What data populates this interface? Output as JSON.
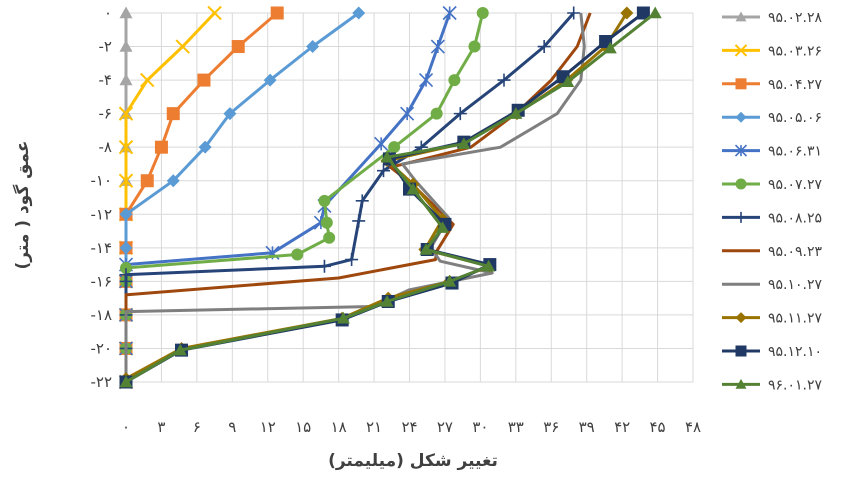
{
  "chart_data": {
    "type": "line",
    "title": "",
    "xlabel": "تغییر شکل (میلیمتر)",
    "ylabel": "عمق گود ( متر)",
    "xlim": [
      0,
      48
    ],
    "ylim": [
      -22,
      0
    ],
    "x_ticks": [
      "۰",
      "۳",
      "۶",
      "۹",
      "۱۲",
      "۱۵",
      "۱۸",
      "۲۱",
      "۲۴",
      "۲۷",
      "۳۰",
      "۳۳",
      "۳۶",
      "۳۹",
      "۴۲",
      "۴۵",
      "۴۸"
    ],
    "y_ticks": [
      "۰",
      "-۲",
      "-۴",
      "-۶",
      "-۸",
      "-۱۰",
      "-۱۲",
      "-۱۴",
      "-۱۶",
      "-۱۸",
      "-۲۰",
      "-۲۲"
    ],
    "grid": true,
    "legend_position": "right",
    "depths": [
      0,
      -2,
      -4,
      -6,
      -8,
      -10,
      -12,
      -14,
      -16,
      -18,
      -20,
      -22
    ],
    "series": [
      {
        "name": "۹۵.۰۲.۲۸",
        "color": "#a5a5a5",
        "marker": "triangle",
        "points": [
          [
            0,
            0
          ],
          [
            0,
            -2
          ],
          [
            0,
            -4
          ],
          [
            0,
            -6
          ],
          [
            0,
            -8
          ],
          [
            0,
            -10
          ],
          [
            0,
            -12
          ],
          [
            0,
            -14
          ],
          [
            0,
            -16
          ],
          [
            0,
            -18
          ],
          [
            0,
            -20
          ],
          [
            0,
            -22
          ]
        ]
      },
      {
        "name": "۹۵.۰۳.۲۶",
        "color": "#ffc000",
        "marker": "x",
        "points": [
          [
            7.5,
            0
          ],
          [
            4.8,
            -2
          ],
          [
            1.8,
            -4
          ],
          [
            0,
            -6
          ],
          [
            0,
            -8
          ],
          [
            0,
            -10
          ],
          [
            0,
            -12
          ],
          [
            0,
            -14
          ],
          [
            0,
            -16
          ],
          [
            0,
            -18
          ],
          [
            0,
            -20
          ],
          [
            0,
            -22
          ]
        ]
      },
      {
        "name": "۹۵.۰۴.۲۷",
        "color": "#ed7d31",
        "marker": "square",
        "points": [
          [
            12.8,
            0
          ],
          [
            9.5,
            -2
          ],
          [
            6.6,
            -4
          ],
          [
            4,
            -6
          ],
          [
            3,
            -8
          ],
          [
            1.8,
            -10
          ],
          [
            0,
            -12
          ],
          [
            0,
            -14
          ],
          [
            0,
            -16
          ],
          [
            0,
            -18
          ],
          [
            0,
            -20
          ],
          [
            0,
            -22
          ]
        ]
      },
      {
        "name": "۹۵.۰۵.۰۶",
        "color": "#5b9bd5",
        "marker": "diamond",
        "points": [
          [
            19.7,
            0
          ],
          [
            15.8,
            -2
          ],
          [
            12.2,
            -4
          ],
          [
            8.8,
            -6
          ],
          [
            6.7,
            -8
          ],
          [
            4,
            -10
          ],
          [
            0,
            -12
          ],
          [
            0,
            -14
          ],
          [
            0,
            -16
          ],
          [
            0,
            -18
          ],
          [
            0,
            -20
          ],
          [
            0,
            -22
          ]
        ]
      },
      {
        "name": "۹۵.۰۶.۳۱",
        "color": "#4472c4",
        "marker": "star",
        "points": [
          [
            27.4,
            0
          ],
          [
            26.4,
            -2
          ],
          [
            25.4,
            -4
          ],
          [
            23.8,
            -6
          ],
          [
            21.6,
            -7.8
          ],
          [
            16.8,
            -11.5
          ],
          [
            16.5,
            -12.5
          ],
          [
            12.4,
            -14.3
          ],
          [
            0,
            -15
          ],
          [
            0,
            -16
          ],
          [
            0,
            -18
          ],
          [
            0,
            -20
          ],
          [
            0,
            -22
          ]
        ]
      },
      {
        "name": "۹۵.۰۷.۲۷",
        "color": "#70ad47",
        "marker": "circle",
        "points": [
          [
            30.2,
            0
          ],
          [
            29.5,
            -2
          ],
          [
            27.8,
            -4
          ],
          [
            26.3,
            -6
          ],
          [
            22.7,
            -8
          ],
          [
            16.8,
            -11.2
          ],
          [
            17,
            -12.5
          ],
          [
            17.2,
            -13.4
          ],
          [
            14.5,
            -14.4
          ],
          [
            0,
            -15.2
          ],
          [
            0,
            -16
          ],
          [
            0,
            -18
          ],
          [
            0,
            -20
          ],
          [
            0,
            -22
          ]
        ]
      },
      {
        "name": "۹۵.۰۸.۲۵",
        "color": "#264478",
        "marker": "plus",
        "points": [
          [
            37.9,
            0
          ],
          [
            35.4,
            -2
          ],
          [
            32,
            -4
          ],
          [
            28.3,
            -6
          ],
          [
            25,
            -8
          ],
          [
            21.8,
            -9.4
          ],
          [
            20,
            -11.2
          ],
          [
            19.7,
            -12.4
          ],
          [
            19.1,
            -14.7
          ],
          [
            16.8,
            -15.1
          ],
          [
            0,
            -15.6
          ],
          [
            0,
            -16
          ],
          [
            0,
            -18
          ],
          [
            0,
            -20
          ],
          [
            0,
            -22
          ]
        ]
      },
      {
        "name": "۹۵.۰۹.۲۳",
        "color": "#9e480e",
        "marker": "none",
        "points": [
          [
            39.3,
            0
          ],
          [
            38.2,
            -2
          ],
          [
            36,
            -4
          ],
          [
            33,
            -6
          ],
          [
            29.2,
            -8
          ],
          [
            22.4,
            -9.2
          ],
          [
            24.2,
            -10.2
          ],
          [
            27.7,
            -12.6
          ],
          [
            26.3,
            -14.2
          ],
          [
            26.2,
            -14.7
          ],
          [
            18,
            -15.8
          ],
          [
            0,
            -16.8
          ],
          [
            0,
            -18
          ],
          [
            0,
            -20
          ],
          [
            0,
            -22
          ]
        ]
      },
      {
        "name": "۹۵.۱۰.۲۷",
        "color": "#7f7f7f",
        "marker": "none",
        "points": [
          [
            38.5,
            0
          ],
          [
            38.8,
            -2
          ],
          [
            38.5,
            -4
          ],
          [
            36.5,
            -6
          ],
          [
            31.7,
            -8
          ],
          [
            23.4,
            -9
          ],
          [
            24.5,
            -10
          ],
          [
            27.3,
            -12.2
          ],
          [
            25.8,
            -14
          ],
          [
            26.6,
            -14.8
          ],
          [
            31,
            -15.5
          ],
          [
            24,
            -16.5
          ],
          [
            20.9,
            -17.5
          ],
          [
            0,
            -17.8
          ],
          [
            0,
            -18
          ],
          [
            0,
            -20
          ],
          [
            0,
            -22
          ]
        ]
      },
      {
        "name": "۹۵.۱۱.۲۷",
        "color": "#997300",
        "marker": "diamond",
        "points": [
          [
            42.4,
            0
          ],
          [
            40.6,
            -2
          ],
          [
            37.3,
            -4
          ],
          [
            33.1,
            -6
          ],
          [
            28.4,
            -7.8
          ],
          [
            22.1,
            -8.8
          ],
          [
            24.3,
            -10.2
          ],
          [
            26.8,
            -12.3
          ],
          [
            25.3,
            -14.1
          ],
          [
            30.8,
            -15.1
          ],
          [
            27.4,
            -16
          ],
          [
            22.2,
            -17
          ],
          [
            18.3,
            -18.2
          ],
          [
            4.7,
            -20
          ],
          [
            0,
            -21.8
          ],
          [
            0,
            -22
          ]
        ]
      },
      {
        "name": "۹۵.۱۲.۱۰",
        "color": "#1f3864",
        "marker": "square",
        "points": [
          [
            43.8,
            0
          ],
          [
            40.6,
            -1.7
          ],
          [
            37,
            -3.8
          ],
          [
            33.2,
            -5.8
          ],
          [
            28.6,
            -7.7
          ],
          [
            22.3,
            -8.7
          ],
          [
            24,
            -10.5
          ],
          [
            27,
            -12.6
          ],
          [
            25.5,
            -14.1
          ],
          [
            30.8,
            -15
          ],
          [
            27.6,
            -16.1
          ],
          [
            22.2,
            -17.2
          ],
          [
            18.3,
            -18.3
          ],
          [
            4.7,
            -20.1
          ],
          [
            0,
            -22
          ]
        ]
      },
      {
        "name": "۹۶.۰۱.۲۷",
        "color": "#548235",
        "marker": "triangle",
        "points": [
          [
            44.8,
            0
          ],
          [
            41,
            -2.1
          ],
          [
            37.4,
            -4.1
          ],
          [
            33,
            -6
          ],
          [
            28.6,
            -7.8
          ],
          [
            22.1,
            -8.6
          ],
          [
            24.3,
            -10.5
          ],
          [
            26.8,
            -12.8
          ],
          [
            25.4,
            -14.1
          ],
          [
            30.7,
            -15.1
          ],
          [
            27.4,
            -16
          ],
          [
            22.1,
            -17.2
          ],
          [
            18.4,
            -18.2
          ],
          [
            4.6,
            -20.1
          ],
          [
            0,
            -22
          ]
        ]
      }
    ]
  }
}
